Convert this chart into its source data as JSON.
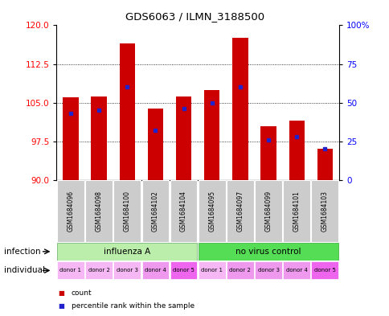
{
  "title": "GDS6063 / ILMN_3188500",
  "samples": [
    "GSM1684096",
    "GSM1684098",
    "GSM1684100",
    "GSM1684102",
    "GSM1684104",
    "GSM1684095",
    "GSM1684097",
    "GSM1684099",
    "GSM1684101",
    "GSM1684103"
  ],
  "count_values": [
    106.0,
    106.2,
    116.5,
    103.8,
    106.2,
    107.5,
    117.5,
    100.5,
    101.5,
    96.0
  ],
  "percentile_values": [
    43,
    45,
    60,
    32,
    46,
    50,
    60,
    26,
    28,
    20
  ],
  "ylim_left": [
    90,
    120
  ],
  "ylim_right": [
    0,
    100
  ],
  "yticks_left": [
    90,
    97.5,
    105,
    112.5,
    120
  ],
  "yticks_right": [
    0,
    25,
    50,
    75,
    100
  ],
  "bar_color": "#cc0000",
  "blue_color": "#2222cc",
  "infection_labels": [
    "influenza A",
    "no virus control"
  ],
  "infection_colors": [
    "#bbeeaa",
    "#55dd55"
  ],
  "individual_labels": [
    "donor 1",
    "donor 2",
    "donor 3",
    "donor 4",
    "donor 5",
    "donor 1",
    "donor 2",
    "donor 3",
    "donor 4",
    "donor 5"
  ],
  "individual_colors": [
    "#f5b8f5",
    "#f5b8f5",
    "#f5b8f5",
    "#ee99ee",
    "#ee66ee",
    "#f5b8f5",
    "#ee99ee",
    "#ee99ee",
    "#ee99ee",
    "#ee66ee"
  ],
  "background_color": "#ffffff",
  "label_infection": "infection",
  "label_individual": "individual"
}
